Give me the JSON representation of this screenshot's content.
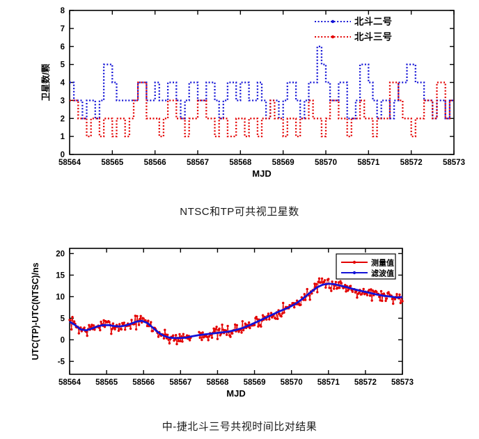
{
  "page": {
    "background": "#ffffff",
    "axis_color": "#000000"
  },
  "chart_data": [
    {
      "id": "visible-satellites",
      "type": "line",
      "subtype": "step",
      "caption": "NTSC和TP可共视卫星数",
      "xlabel": "MJD",
      "ylabel": "卫星数/颗",
      "xlim": [
        58564,
        58573
      ],
      "ylim": [
        0,
        8
      ],
      "xticks": [
        58564,
        58565,
        58566,
        58567,
        58568,
        58569,
        58570,
        58571,
        58572,
        58573
      ],
      "yticks": [
        0,
        1,
        2,
        3,
        4,
        5,
        6,
        7,
        8
      ],
      "grid": false,
      "legend": {
        "position": "top-right",
        "box": false
      },
      "series": [
        {
          "name": "北斗二号",
          "color": "#1212d6",
          "line_style": "dotted",
          "step_start": 58564,
          "step_dx": 0.1,
          "values": [
            4,
            3,
            3,
            2,
            3,
            3,
            2,
            3,
            5,
            5,
            4,
            3,
            3,
            3,
            3,
            3,
            4,
            4,
            3,
            3,
            4,
            3,
            3,
            4,
            4,
            3,
            2,
            3,
            4,
            4,
            3,
            3,
            4,
            4,
            3,
            2,
            3,
            4,
            4,
            3,
            4,
            4,
            3,
            3,
            4,
            3,
            2,
            3,
            3,
            2,
            3,
            4,
            4,
            3,
            2,
            3,
            4,
            4,
            6,
            5,
            4,
            3,
            3,
            4,
            4,
            2,
            2,
            3,
            5,
            5,
            4,
            3,
            2,
            3,
            3,
            2,
            3,
            4,
            4,
            5,
            5,
            4,
            4,
            3,
            3,
            2,
            3,
            3,
            2,
            3
          ]
        },
        {
          "name": "北斗三号",
          "color": "#e30000",
          "line_style": "dotted",
          "step_start": 58564,
          "step_dx": 0.1,
          "values": [
            3,
            3,
            2,
            2,
            1,
            2,
            2,
            1,
            2,
            2,
            1,
            2,
            2,
            1,
            2,
            3,
            4,
            4,
            2,
            2,
            2,
            1,
            2,
            3,
            3,
            2,
            2,
            1,
            2,
            2,
            3,
            3,
            2,
            2,
            1,
            2,
            2,
            1,
            1,
            2,
            2,
            1,
            2,
            2,
            1,
            2,
            2,
            3,
            2,
            2,
            1,
            2,
            2,
            1,
            2,
            2,
            3,
            2,
            2,
            1,
            2,
            3,
            3,
            2,
            2,
            1,
            2,
            2,
            3,
            2,
            2,
            1,
            2,
            2,
            2,
            4,
            4,
            3,
            2,
            2,
            1,
            2,
            2,
            3,
            3,
            2,
            4,
            4,
            2,
            3
          ]
        }
      ]
    },
    {
      "id": "time-comparison",
      "type": "line",
      "caption": "中-捷北斗三号共视时间比对结果",
      "xlabel": "MJD",
      "ylabel": "UTC(TP)-UTC(NTSC)/ns",
      "xlim": [
        58564,
        58573
      ],
      "ylim": [
        -8,
        21.2
      ],
      "xticks": [
        58564,
        58565,
        58566,
        58567,
        58568,
        58569,
        58570,
        58571,
        58572,
        58573
      ],
      "yticks": [
        -5,
        0,
        5,
        10,
        15,
        20
      ],
      "grid": false,
      "legend": {
        "position": "top-right",
        "box": true
      },
      "series": [
        {
          "name": "测量值",
          "color": "#e30000",
          "role": "measured",
          "derived_from": "滤波值",
          "noise_amplitude": 1.5,
          "noise_seed": 7,
          "sample_dx": 0.025,
          "gaps": [
            [
              58567.28,
              58567.5
            ]
          ]
        },
        {
          "name": "滤波值",
          "color": "#1212d6",
          "role": "filtered",
          "keypoints": [
            [
              58564.0,
              4.2
            ],
            [
              58564.15,
              3.4
            ],
            [
              58564.3,
              2.4
            ],
            [
              58564.45,
              2.2
            ],
            [
              58564.6,
              2.6
            ],
            [
              58564.75,
              3.1
            ],
            [
              58564.9,
              3.4
            ],
            [
              58565.05,
              3.4
            ],
            [
              58565.2,
              3.2
            ],
            [
              58565.35,
              3.1
            ],
            [
              58565.5,
              3.3
            ],
            [
              58565.65,
              3.7
            ],
            [
              58565.8,
              4.2
            ],
            [
              58565.95,
              4.4
            ],
            [
              58566.1,
              3.9
            ],
            [
              58566.25,
              2.8
            ],
            [
              58566.4,
              1.7
            ],
            [
              58566.55,
              0.9
            ],
            [
              58566.7,
              0.5
            ],
            [
              58566.85,
              0.4
            ],
            [
              58567.0,
              0.4
            ],
            [
              58567.15,
              0.5
            ],
            [
              58567.3,
              0.8
            ],
            [
              58567.5,
              1.1
            ],
            [
              58567.7,
              1.3
            ],
            [
              58567.9,
              1.5
            ],
            [
              58568.1,
              1.7
            ],
            [
              58568.3,
              1.9
            ],
            [
              58568.5,
              2.3
            ],
            [
              58568.7,
              2.8
            ],
            [
              58568.9,
              3.5
            ],
            [
              58569.1,
              4.3
            ],
            [
              58569.3,
              5.1
            ],
            [
              58569.5,
              5.9
            ],
            [
              58569.7,
              6.7
            ],
            [
              58569.9,
              7.4
            ],
            [
              58570.1,
              8.3
            ],
            [
              58570.3,
              9.5
            ],
            [
              58570.5,
              10.9
            ],
            [
              58570.7,
              12.2
            ],
            [
              58570.85,
              12.8
            ],
            [
              58571.0,
              13.0
            ],
            [
              58571.15,
              12.9
            ],
            [
              58571.3,
              12.6
            ],
            [
              58571.5,
              12.2
            ],
            [
              58571.7,
              11.7
            ],
            [
              58571.9,
              11.3
            ],
            [
              58572.1,
              10.9
            ],
            [
              58572.3,
              10.5
            ],
            [
              58572.5,
              10.2
            ],
            [
              58572.7,
              10.0
            ],
            [
              58572.85,
              9.8
            ],
            [
              58573.0,
              9.9
            ]
          ]
        }
      ]
    }
  ]
}
